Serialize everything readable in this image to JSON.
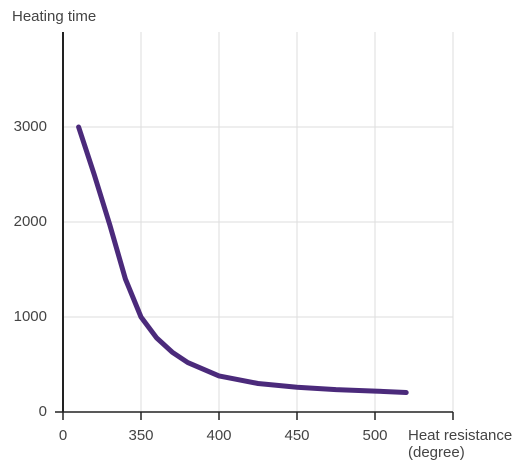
{
  "chart_data": {
    "type": "line",
    "ylabel": "Heating time",
    "xlabel": [
      "Heat resistance",
      "(degree)"
    ],
    "x": [
      310,
      320,
      330,
      340,
      350,
      360,
      370,
      380,
      400,
      425,
      450,
      475,
      500,
      520
    ],
    "series": [
      {
        "color": "#4b2a7b",
        "values": [
          3000,
          2500,
          1970,
          1400,
          1000,
          780,
          630,
          520,
          380,
          300,
          260,
          235,
          220,
          205
        ]
      }
    ],
    "xlim": [
      300,
      550
    ],
    "ylim": [
      0,
      4000
    ],
    "xticks": [
      {
        "value": 300,
        "label": "0"
      },
      350,
      400,
      450,
      500
    ],
    "yticks": [
      0,
      1000,
      2000,
      3000
    ],
    "grid": true
  }
}
